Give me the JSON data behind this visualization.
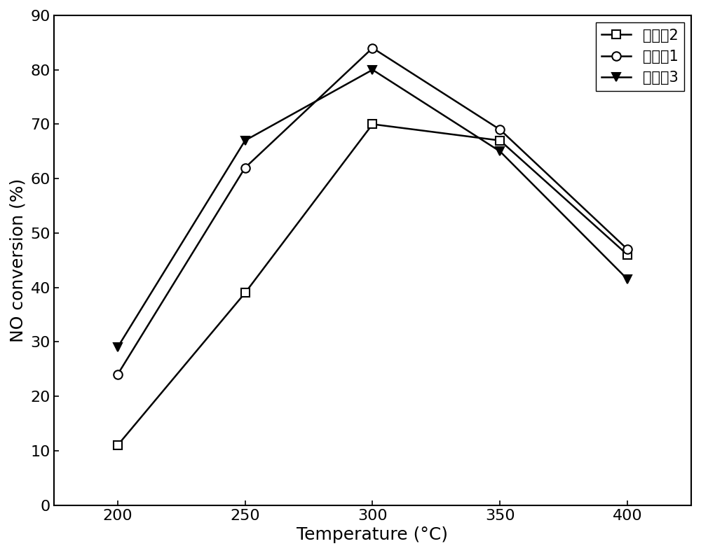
{
  "title": "",
  "xlabel": "Temperature (°C)",
  "ylabel": "NO conversion (%)",
  "xlim": [
    175,
    425
  ],
  "ylim": [
    0,
    90
  ],
  "xticks": [
    200,
    250,
    300,
    350,
    400
  ],
  "yticks": [
    0,
    10,
    20,
    30,
    40,
    50,
    60,
    70,
    80,
    90
  ],
  "temperature": [
    200,
    250,
    300,
    350,
    400
  ],
  "series": [
    {
      "label": "催化剂2",
      "values": [
        11,
        39,
        70,
        67,
        46
      ],
      "marker": "s",
      "color": "#000000",
      "markersize": 9,
      "markerfacecolor": "white",
      "linewidth": 1.8
    },
    {
      "label": "催化剂1",
      "values": [
        24,
        62,
        84,
        69,
        47
      ],
      "marker": "o",
      "color": "#000000",
      "markersize": 9,
      "markerfacecolor": "white",
      "linewidth": 1.8
    },
    {
      "label": "催化剂3",
      "values": [
        29,
        67,
        80,
        65,
        41.5
      ],
      "marker": "v",
      "color": "#000000",
      "markersize": 9,
      "markerfacecolor": "#000000",
      "linewidth": 1.8
    }
  ],
  "legend_loc": "upper right",
  "font_size": 18,
  "tick_font_size": 16,
  "legend_font_size": 15,
  "background_color": "#ffffff"
}
